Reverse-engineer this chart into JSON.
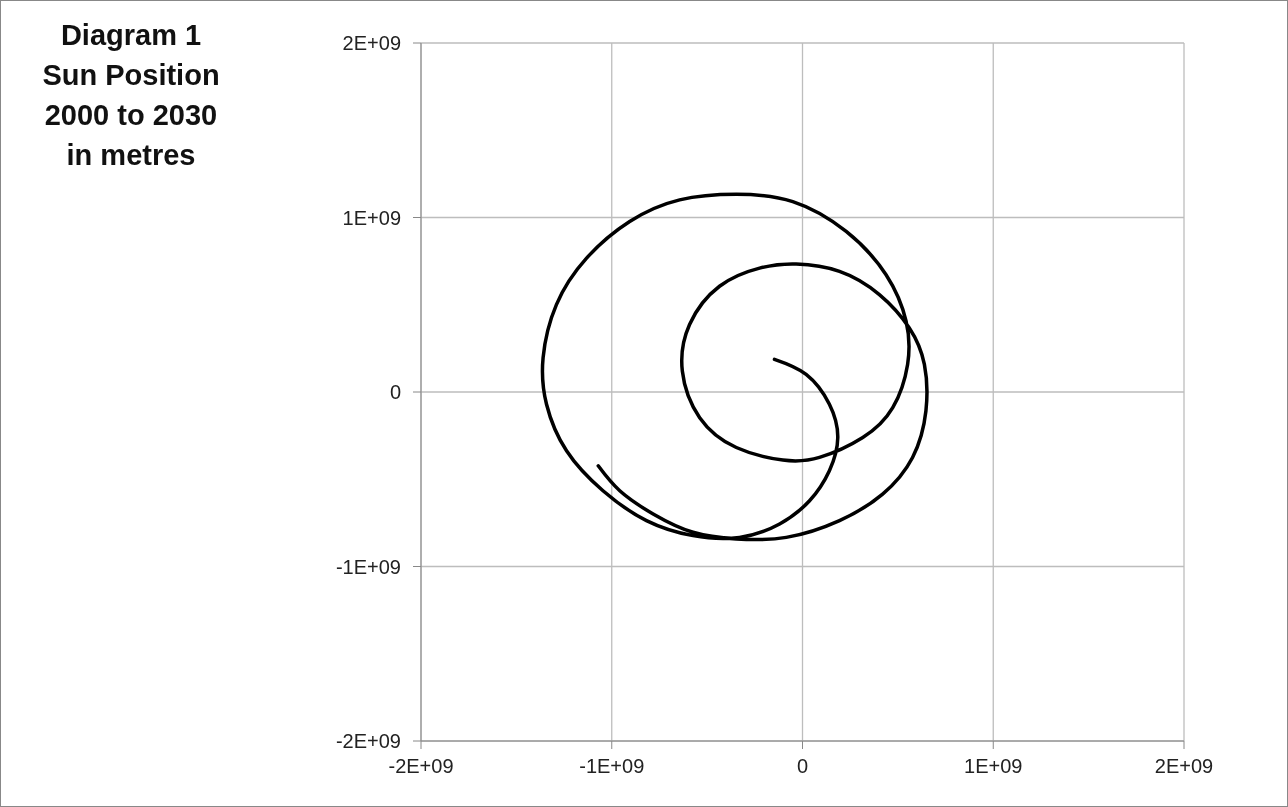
{
  "chart_data": {
    "type": "line",
    "title": "Diagram 1\nSun Position\n2000 to 2030\nin metres",
    "series": [
      {
        "color": "#000000",
        "marker": "none",
        "line_style": "solid",
        "x": [
          -147000000,
          19000000,
          141000000,
          185000000,
          141000000,
          37000000,
          -120000000,
          -330000000,
          -574000000,
          -818000000,
          -1046000000,
          -1237000000,
          -1342000000,
          -1360000000,
          -1290000000,
          -1132000000,
          -906000000,
          -644000000,
          -347000000,
          -51000000,
          229000000,
          438000000,
          543000000,
          551000000,
          473000000,
          316000000,
          89000000,
          -103000000,
          -347000000,
          -539000000,
          -630000000,
          -592000000,
          -435000000,
          -225000000,
          -33000000,
          194000000,
          403000000,
          560000000,
          639000000,
          647000000,
          577000000,
          420000000,
          194000000,
          -85000000,
          -347000000,
          -574000000,
          -783000000,
          -958000000,
          -1071000000
        ],
        "values": [
          187000000,
          101000000,
          -70000000,
          -261000000,
          -451000000,
          -623000000,
          -756000000,
          -833000000,
          -823000000,
          -737000000,
          -566000000,
          -337000000,
          -70000000,
          196000000,
          501000000,
          767000000,
          977000000,
          1101000000,
          1133000000,
          1091000000,
          920000000,
          672000000,
          406000000,
          158000000,
          -90000000,
          -261000000,
          -375000000,
          -390000000,
          -318000000,
          -147000000,
          120000000,
          387000000,
          606000000,
          710000000,
          733000000,
          691000000,
          558000000,
          367000000,
          158000000,
          -109000000,
          -375000000,
          -585000000,
          -737000000,
          -833000000,
          -842000000,
          -804000000,
          -699000000,
          -566000000,
          -423000000
        ]
      }
    ],
    "xlim": [
      -2000000000,
      2000000000
    ],
    "xticks": [
      {
        "value": -2000000000,
        "label": "-2E+09"
      },
      {
        "value": -1000000000,
        "label": "-1E+09"
      },
      {
        "value": 0,
        "label": "0"
      },
      {
        "value": 1000000000,
        "label": "1E+09"
      },
      {
        "value": 2000000000,
        "label": "2E+09"
      }
    ],
    "ylim": [
      -2000000000,
      2000000000
    ],
    "yticks": [
      {
        "value": -2000000000,
        "label": "-2E+09"
      },
      {
        "value": -1000000000,
        "label": "-1E+09"
      },
      {
        "value": 0,
        "label": "0"
      },
      {
        "value": 1000000000,
        "label": "1E+09"
      },
      {
        "value": 2000000000,
        "label": "2E+09"
      }
    ],
    "grid": true,
    "legend": false
  }
}
